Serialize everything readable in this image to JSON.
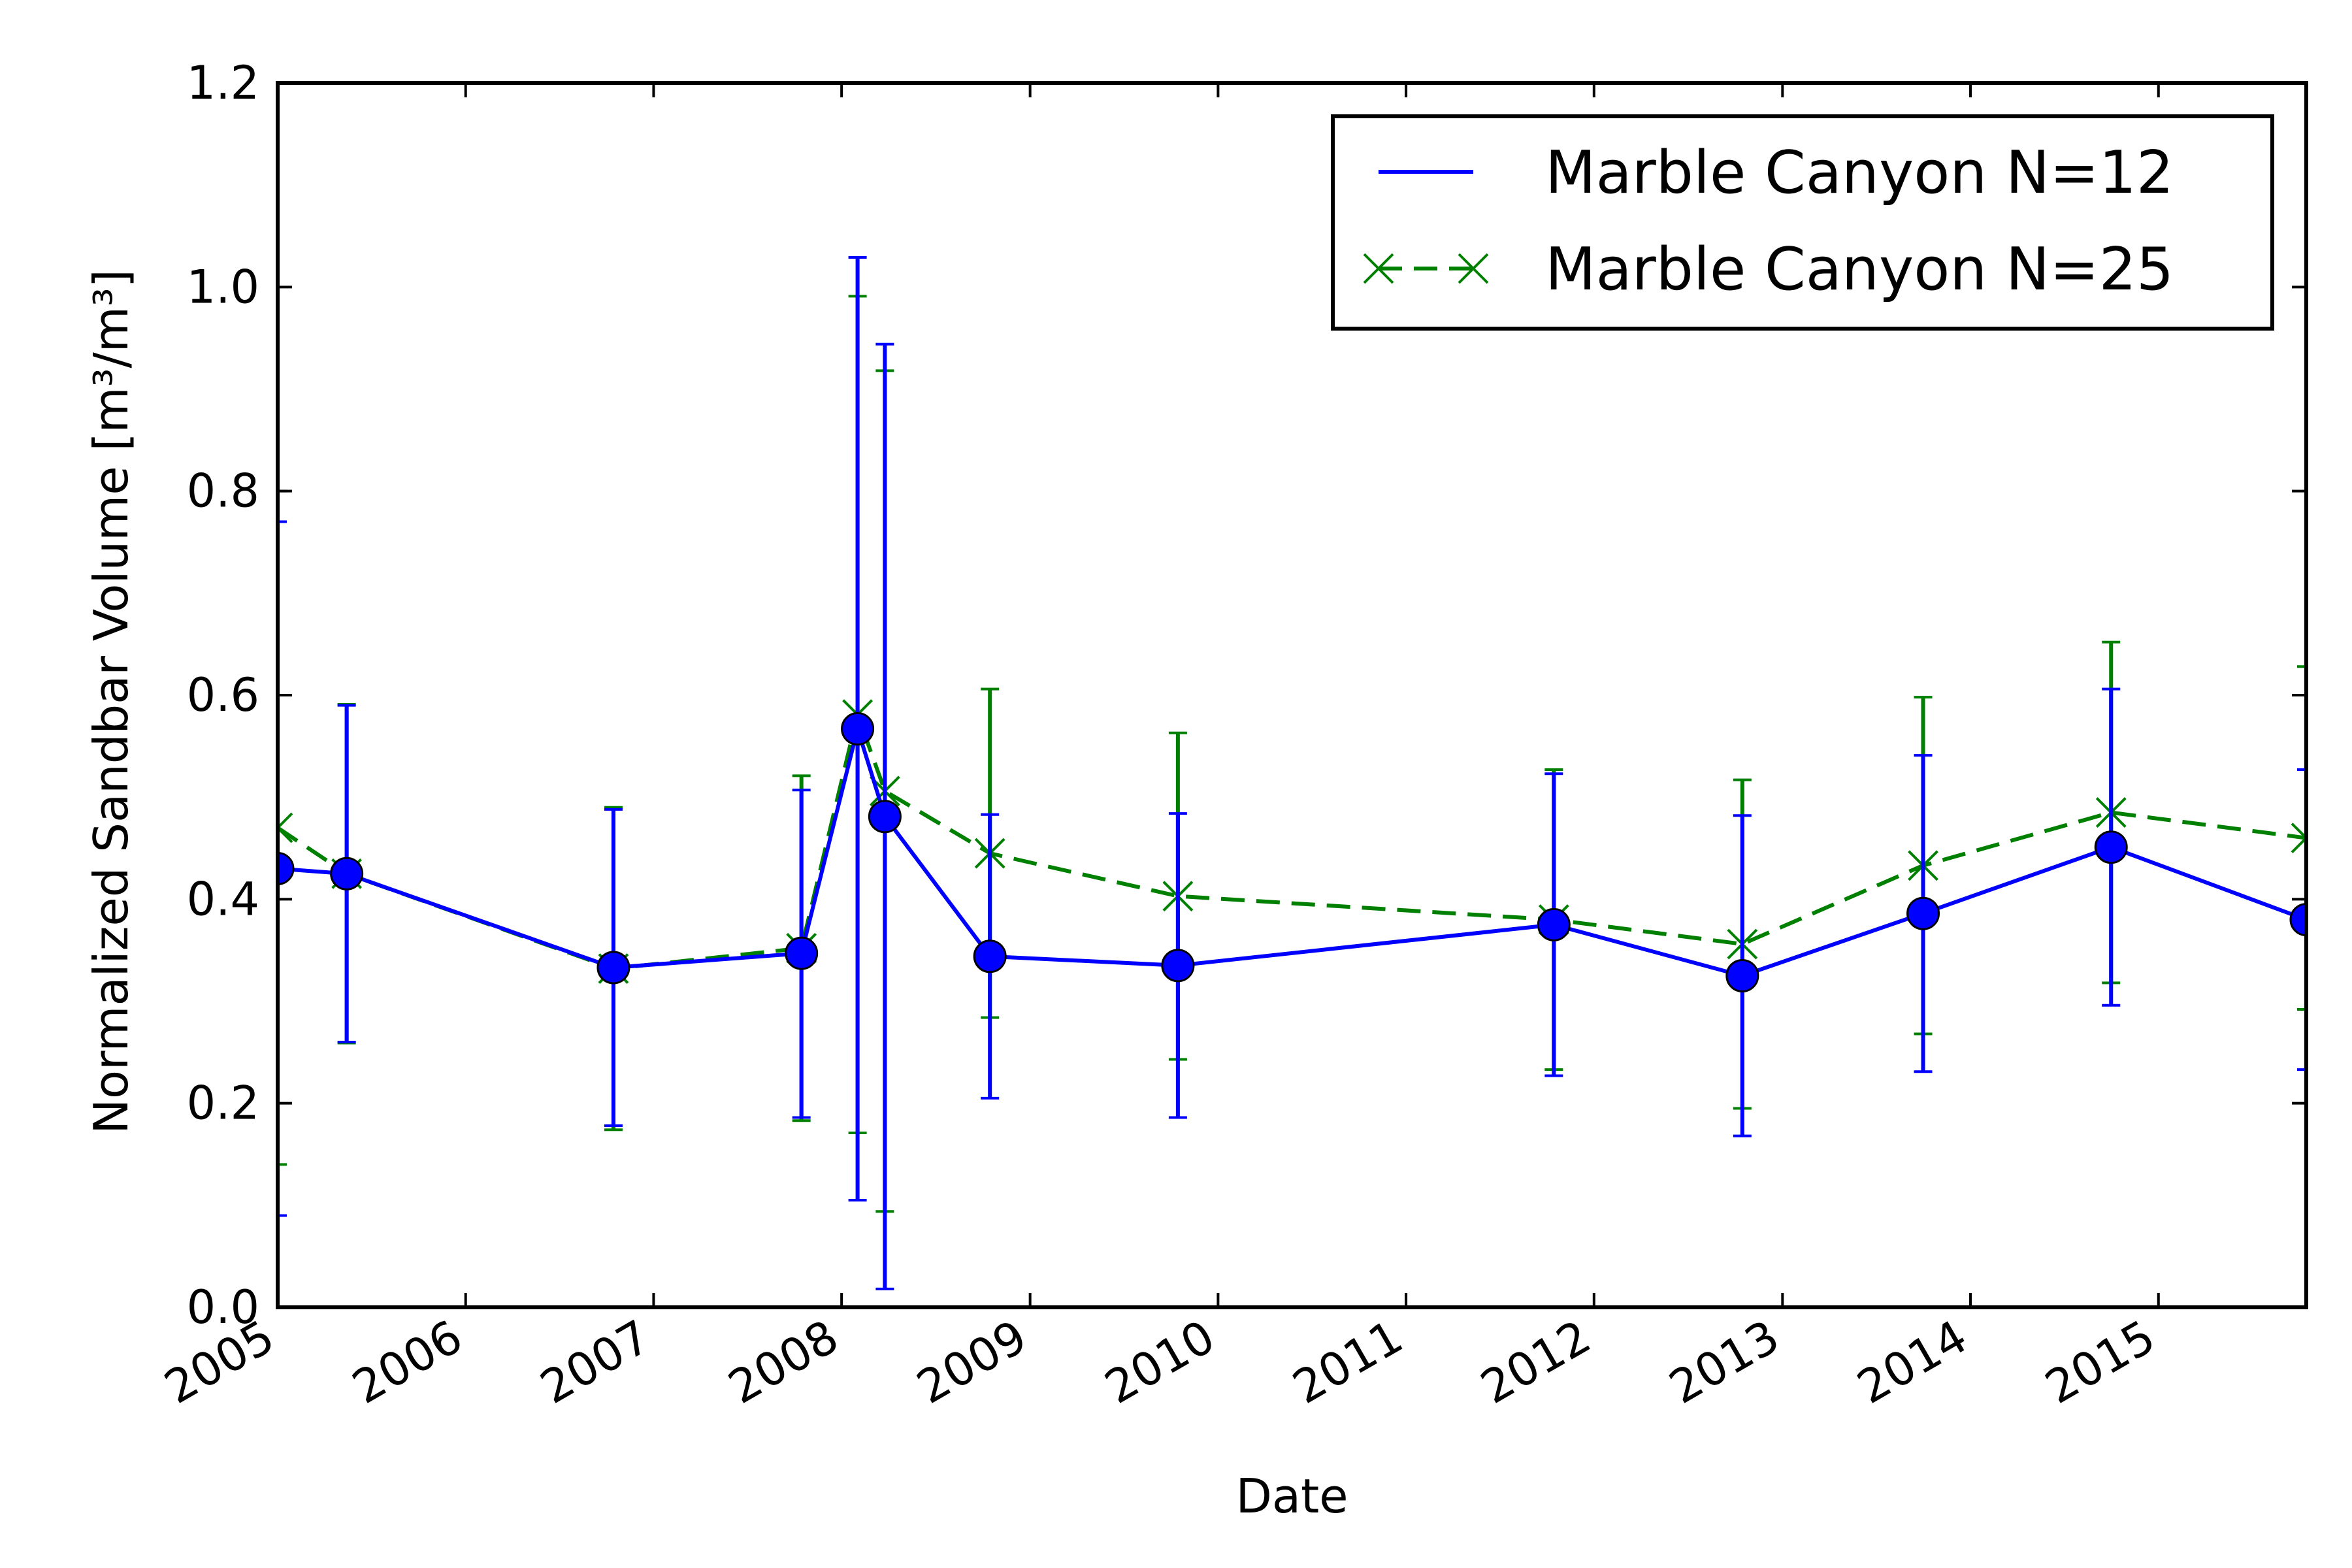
{
  "colors": {
    "series1": "#0000ff",
    "series2": "#008000",
    "axes": "#000000",
    "background": "#ffffff"
  },
  "chart_data": {
    "type": "line",
    "title": "",
    "xlabel": "Date",
    "ylabel": "Normalized Sandbar Volume [m³/m³]",
    "xlim": [
      "2005-01-01",
      "2015-10-15"
    ],
    "ylim": [
      0.0,
      1.2
    ],
    "grid": false,
    "legend_position": "top-right",
    "x_tick_labels": [
      "2005",
      "2006",
      "2007",
      "2008",
      "2009",
      "2010",
      "2011",
      "2012",
      "2013",
      "2014",
      "2015"
    ],
    "y_tick_labels": [
      "0.0",
      "0.2",
      "0.4",
      "0.6",
      "0.8",
      "1.0",
      "1.2"
    ],
    "series": [
      {
        "name": "Marble Canyon N=12",
        "color": "#0000ff",
        "line_style": "solid",
        "marker": "circle",
        "points": [
          {
            "date": "2005-01-01",
            "y": 0.43,
            "lo": 0.09,
            "hi": 0.77
          },
          {
            "date": "2005-05-15",
            "y": 0.425,
            "lo": 0.26,
            "hi": 0.59
          },
          {
            "date": "2006-10-15",
            "y": 0.333,
            "lo": 0.178,
            "hi": 0.488
          },
          {
            "date": "2007-10-15",
            "y": 0.347,
            "lo": 0.186,
            "hi": 0.507
          },
          {
            "date": "2008-02-01",
            "y": 0.567,
            "lo": 0.105,
            "hi": 1.029
          },
          {
            "date": "2008-03-25",
            "y": 0.481,
            "lo": 0.018,
            "hi": 0.944
          },
          {
            "date": "2008-10-15",
            "y": 0.344,
            "lo": 0.205,
            "hi": 0.483
          },
          {
            "date": "2009-10-15",
            "y": 0.335,
            "lo": 0.186,
            "hi": 0.484
          },
          {
            "date": "2011-10-15",
            "y": 0.375,
            "lo": 0.227,
            "hi": 0.523
          },
          {
            "date": "2012-10-15",
            "y": 0.325,
            "lo": 0.168,
            "hi": 0.482
          },
          {
            "date": "2013-10-01",
            "y": 0.386,
            "lo": 0.231,
            "hi": 0.541
          },
          {
            "date": "2014-10-01",
            "y": 0.451,
            "lo": 0.296,
            "hi": 0.606
          },
          {
            "date": "2015-10-15",
            "y": 0.38,
            "lo": 0.233,
            "hi": 0.527
          }
        ]
      },
      {
        "name": "Marble Canyon N=25",
        "color": "#008000",
        "line_style": "dashed",
        "marker": "x",
        "points": [
          {
            "date": "2005-01-01",
            "y": 0.47,
            "lo": 0.14,
            "hi": 0.8
          },
          {
            "date": "2005-05-15",
            "y": 0.425,
            "lo": 0.259,
            "hi": 0.591
          },
          {
            "date": "2006-10-15",
            "y": 0.332,
            "lo": 0.174,
            "hi": 0.49
          },
          {
            "date": "2007-10-15",
            "y": 0.352,
            "lo": 0.183,
            "hi": 0.521
          },
          {
            "date": "2008-02-01",
            "y": 0.581,
            "lo": 0.171,
            "hi": 0.991
          },
          {
            "date": "2008-03-25",
            "y": 0.506,
            "lo": 0.094,
            "hi": 0.918
          },
          {
            "date": "2008-10-15",
            "y": 0.445,
            "lo": 0.284,
            "hi": 0.606
          },
          {
            "date": "2009-10-15",
            "y": 0.403,
            "lo": 0.243,
            "hi": 0.563
          },
          {
            "date": "2011-10-15",
            "y": 0.38,
            "lo": 0.233,
            "hi": 0.527
          },
          {
            "date": "2012-10-15",
            "y": 0.356,
            "lo": 0.195,
            "hi": 0.517
          },
          {
            "date": "2013-10-01",
            "y": 0.433,
            "lo": 0.268,
            "hi": 0.598
          },
          {
            "date": "2014-10-01",
            "y": 0.485,
            "lo": 0.318,
            "hi": 0.652
          },
          {
            "date": "2015-10-15",
            "y": 0.46,
            "lo": 0.292,
            "hi": 0.628
          }
        ]
      }
    ]
  }
}
